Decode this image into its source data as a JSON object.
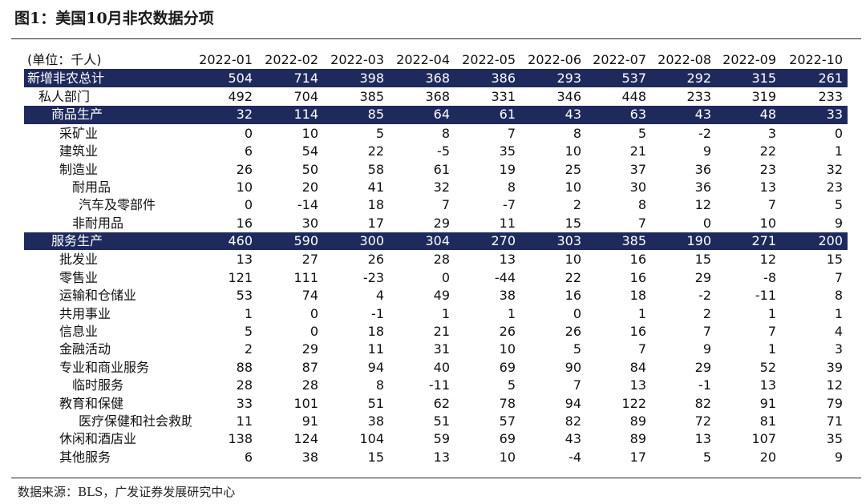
{
  "title": "图1：美国10月非农数据分项",
  "unit_label": "(单位：千人)",
  "columns": [
    "2022-01",
    "2022-02",
    "2022-03",
    "2022-04",
    "2022-05",
    "2022-06",
    "2022-07",
    "2022-08",
    "2022-09",
    "2022-10"
  ],
  "rows": [
    {
      "label": "新增非农总计",
      "indent": 0,
      "highlight": true,
      "values": [
        "504",
        "714",
        "398",
        "368",
        "386",
        "293",
        "537",
        "292",
        "315",
        "261"
      ]
    },
    {
      "label": "私人部门",
      "indent": 1,
      "highlight": false,
      "values": [
        "492",
        "704",
        "385",
        "368",
        "331",
        "346",
        "448",
        "233",
        "319",
        "233"
      ]
    },
    {
      "label": "商品生产",
      "indent": 2,
      "highlight": true,
      "values": [
        "32",
        "114",
        "85",
        "64",
        "61",
        "43",
        "63",
        "43",
        "48",
        "33"
      ]
    },
    {
      "label": "采矿业",
      "indent": 3,
      "highlight": false,
      "values": [
        "0",
        "10",
        "5",
        "8",
        "7",
        "8",
        "5",
        "-2",
        "3",
        "0"
      ]
    },
    {
      "label": "建筑业",
      "indent": 3,
      "highlight": false,
      "values": [
        "6",
        "54",
        "22",
        "-5",
        "35",
        "10",
        "21",
        "9",
        "22",
        "1"
      ]
    },
    {
      "label": "制造业",
      "indent": 3,
      "highlight": false,
      "values": [
        "26",
        "50",
        "58",
        "61",
        "19",
        "25",
        "37",
        "36",
        "23",
        "32"
      ]
    },
    {
      "label": "耐用品",
      "indent": 4,
      "highlight": false,
      "values": [
        "10",
        "20",
        "41",
        "32",
        "8",
        "10",
        "30",
        "36",
        "13",
        "23"
      ]
    },
    {
      "label": "汽车及零部件",
      "indent": 5,
      "highlight": false,
      "values": [
        "0",
        "-14",
        "18",
        "7",
        "-7",
        "2",
        "8",
        "12",
        "7",
        "5"
      ]
    },
    {
      "label": "非耐用品",
      "indent": 4,
      "highlight": false,
      "values": [
        "16",
        "30",
        "17",
        "29",
        "11",
        "15",
        "7",
        "0",
        "10",
        "9"
      ]
    },
    {
      "label": "服务生产",
      "indent": 2,
      "highlight": true,
      "values": [
        "460",
        "590",
        "300",
        "304",
        "270",
        "303",
        "385",
        "190",
        "271",
        "200"
      ]
    },
    {
      "label": "批发业",
      "indent": 3,
      "highlight": false,
      "values": [
        "13",
        "27",
        "26",
        "28",
        "13",
        "10",
        "16",
        "15",
        "12",
        "15"
      ]
    },
    {
      "label": "零售业",
      "indent": 3,
      "highlight": false,
      "values": [
        "121",
        "111",
        "-23",
        "0",
        "-44",
        "22",
        "16",
        "29",
        "-8",
        "7"
      ]
    },
    {
      "label": "运输和仓储业",
      "indent": 3,
      "highlight": false,
      "values": [
        "53",
        "74",
        "4",
        "49",
        "38",
        "16",
        "18",
        "-2",
        "-11",
        "8"
      ]
    },
    {
      "label": "共用事业",
      "indent": 3,
      "highlight": false,
      "values": [
        "1",
        "0",
        "-1",
        "1",
        "1",
        "0",
        "1",
        "2",
        "1",
        "1"
      ]
    },
    {
      "label": "信息业",
      "indent": 3,
      "highlight": false,
      "values": [
        "5",
        "0",
        "18",
        "21",
        "26",
        "26",
        "16",
        "7",
        "7",
        "4"
      ]
    },
    {
      "label": "金融活动",
      "indent": 3,
      "highlight": false,
      "values": [
        "2",
        "29",
        "11",
        "31",
        "10",
        "5",
        "7",
        "9",
        "1",
        "3"
      ]
    },
    {
      "label": "专业和商业服务",
      "indent": 3,
      "highlight": false,
      "values": [
        "88",
        "87",
        "94",
        "40",
        "69",
        "90",
        "84",
        "29",
        "52",
        "39"
      ]
    },
    {
      "label": "临时服务",
      "indent": 4,
      "highlight": false,
      "values": [
        "28",
        "28",
        "8",
        "-11",
        "5",
        "7",
        "13",
        "-1",
        "13",
        "12"
      ]
    },
    {
      "label": "教育和保健",
      "indent": 3,
      "highlight": false,
      "values": [
        "33",
        "101",
        "51",
        "62",
        "78",
        "94",
        "122",
        "82",
        "91",
        "79"
      ]
    },
    {
      "label": "医疗保健和社会救助",
      "indent": 5,
      "highlight": false,
      "values": [
        "11",
        "91",
        "38",
        "51",
        "57",
        "82",
        "89",
        "72",
        "81",
        "71"
      ]
    },
    {
      "label": "休闲和酒店业",
      "indent": 3,
      "highlight": false,
      "values": [
        "138",
        "124",
        "104",
        "59",
        "69",
        "43",
        "89",
        "13",
        "107",
        "35"
      ]
    },
    {
      "label": "其他服务",
      "indent": 3,
      "highlight": false,
      "values": [
        "6",
        "38",
        "15",
        "13",
        "10",
        "-4",
        "17",
        "5",
        "20",
        "9"
      ]
    }
  ],
  "source": "数据来源：BLS，广发证券发展研究中心"
}
